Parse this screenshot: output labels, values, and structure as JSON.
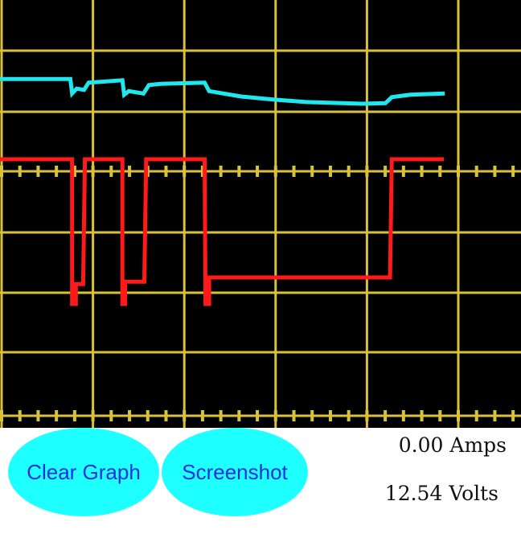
{
  "buttons": {
    "clear_label": "Clear Graph",
    "screenshot_label": "Screenshot"
  },
  "readouts": {
    "amps": "0.00 Amps",
    "volts": "12.54 Volts"
  },
  "colors": {
    "background": "#000000",
    "grid": "#d9c23a",
    "current_trace": "#1ee8ee",
    "voltage_trace": "#ff1a1a",
    "button": "#1effff",
    "button_text": "#1a2fe0"
  },
  "chart_data": {
    "type": "line",
    "grid": true,
    "x_divisions": 5.7,
    "y_divisions": 7.1,
    "series": [
      {
        "color": "#1ee8ee",
        "points": [
          [
            0,
            1.47
          ],
          [
            0.77,
            1.47
          ],
          [
            0.79,
            1.71
          ],
          [
            0.84,
            1.63
          ],
          [
            0.92,
            1.65
          ],
          [
            0.97,
            1.53
          ],
          [
            1.34,
            1.49
          ],
          [
            1.36,
            1.73
          ],
          [
            1.41,
            1.67
          ],
          [
            1.57,
            1.71
          ],
          [
            1.63,
            1.57
          ],
          [
            1.76,
            1.55
          ],
          [
            2.24,
            1.53
          ],
          [
            2.29,
            1.67
          ],
          [
            2.64,
            1.76
          ],
          [
            2.99,
            1.81
          ],
          [
            3.34,
            1.85
          ],
          [
            3.96,
            1.88
          ],
          [
            4.22,
            1.87
          ],
          [
            4.29,
            1.77
          ],
          [
            4.49,
            1.73
          ],
          [
            4.87,
            1.71
          ]
        ]
      },
      {
        "color": "#ff1a1a",
        "points": [
          [
            0,
            2.8
          ],
          [
            0.79,
            2.8
          ],
          [
            0.79,
            5.2
          ],
          [
            0.83,
            5.2
          ],
          [
            0.83,
            4.87
          ],
          [
            0.91,
            4.87
          ],
          [
            0.93,
            2.8
          ],
          [
            1.34,
            2.8
          ],
          [
            1.34,
            5.2
          ],
          [
            1.37,
            5.2
          ],
          [
            1.37,
            4.83
          ],
          [
            1.58,
            4.83
          ],
          [
            1.6,
            2.8
          ],
          [
            2.24,
            2.8
          ],
          [
            2.25,
            5.2
          ],
          [
            2.29,
            5.2
          ],
          [
            2.29,
            4.76
          ],
          [
            4.27,
            4.76
          ],
          [
            4.29,
            2.8
          ],
          [
            4.86,
            2.8
          ]
        ]
      }
    ]
  }
}
